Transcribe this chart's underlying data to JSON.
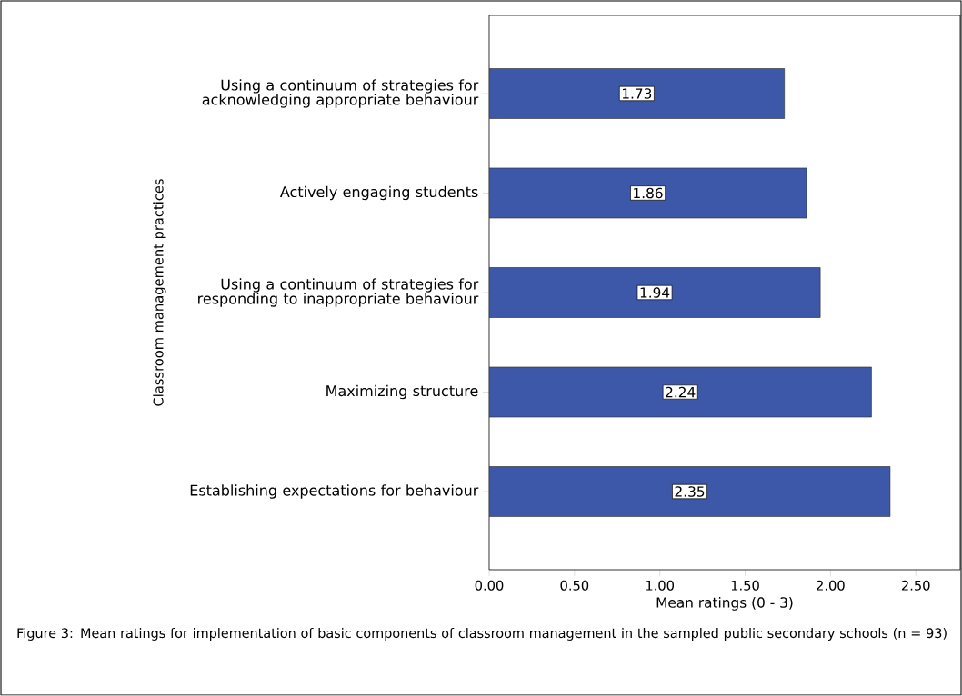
{
  "chart_data": {
    "type": "bar",
    "orientation": "horizontal",
    "categories": [
      "Using a continuum of strategies for acknowledging appropriate behaviour",
      "Actively engaging students",
      "Using a continuum of strategies for responding to inappropriate behaviour",
      "Maximizing structure",
      "Establishing expectations for behaviour"
    ],
    "values": [
      1.73,
      1.86,
      1.94,
      2.24,
      2.35
    ],
    "color": "#3d58a9",
    "data_labels": true,
    "xlim": [
      0,
      2.76
    ],
    "xticks": [
      {
        "value": 0,
        "label": "0.00"
      },
      {
        "value": 0.5,
        "label": "0.50"
      },
      {
        "value": 1,
        "label": "1.00"
      },
      {
        "value": 1.5,
        "label": "1.50"
      },
      {
        "value": 2,
        "label": "2.00"
      },
      {
        "value": 2.5,
        "label": "2.50"
      }
    ],
    "xlabel": "Mean ratings (0 - 3)",
    "ylabel": "Classroom management practices",
    "annotations": [
      "Figure 3: Mean ratings for implementation of basic components of classroom management in the sampled public secondary schools (n = 93)"
    ]
  }
}
